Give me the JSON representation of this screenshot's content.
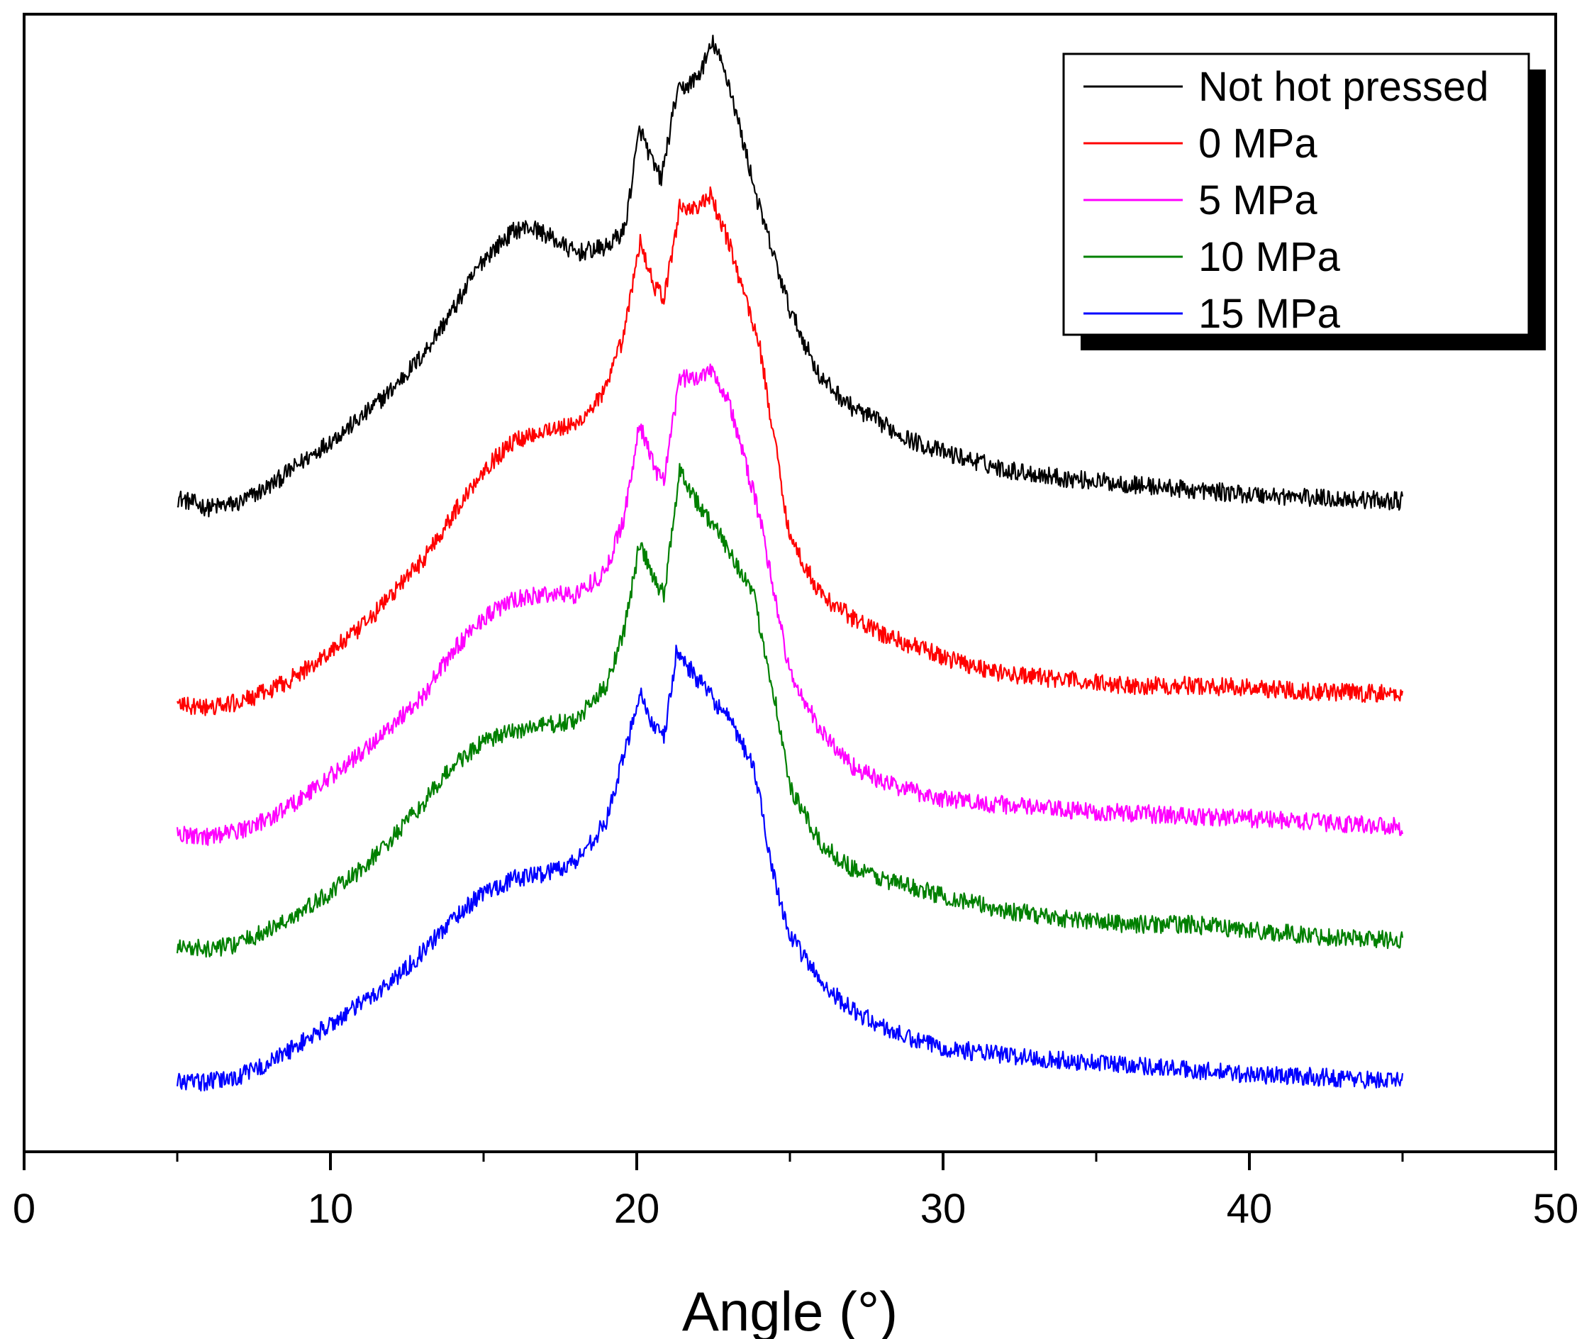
{
  "chart_data": {
    "type": "line",
    "title": "",
    "xlabel": "Angle (°)",
    "ylabel": "",
    "xlim": [
      0,
      50
    ],
    "ylim": [
      0,
      1
    ],
    "x_ticks": [
      "0",
      "10",
      "20",
      "30",
      "40",
      "50"
    ],
    "y_ticks": [],
    "grid": false,
    "legend_position": "top-right",
    "noise": 0.008,
    "series": [
      {
        "name": "Not hot pressed",
        "color": "#000000",
        "points": [
          [
            5,
            0.575
          ],
          [
            6,
            0.566
          ],
          [
            7,
            0.57
          ],
          [
            8,
            0.585
          ],
          [
            9,
            0.605
          ],
          [
            10,
            0.625
          ],
          [
            11,
            0.645
          ],
          [
            12,
            0.67
          ],
          [
            13,
            0.7
          ],
          [
            14,
            0.74
          ],
          [
            15,
            0.785
          ],
          [
            16,
            0.81
          ],
          [
            16.5,
            0.813
          ],
          [
            17,
            0.807
          ],
          [
            18,
            0.79
          ],
          [
            19,
            0.795
          ],
          [
            19.6,
            0.81
          ],
          [
            20.1,
            0.9
          ],
          [
            20.5,
            0.87
          ],
          [
            20.8,
            0.855
          ],
          [
            21.3,
            0.93
          ],
          [
            22,
            0.945
          ],
          [
            22.5,
            0.975
          ],
          [
            23,
            0.94
          ],
          [
            24,
            0.83
          ],
          [
            25,
            0.74
          ],
          [
            26,
            0.68
          ],
          [
            27,
            0.655
          ],
          [
            28,
            0.64
          ],
          [
            29,
            0.625
          ],
          [
            30,
            0.615
          ],
          [
            32,
            0.6
          ],
          [
            34,
            0.592
          ],
          [
            36,
            0.587
          ],
          [
            38,
            0.582
          ],
          [
            40,
            0.578
          ],
          [
            42,
            0.575
          ],
          [
            45,
            0.572
          ]
        ]
      },
      {
        "name": "0 MPa",
        "color": "#ff0000",
        "points": [
          [
            5,
            0.393
          ],
          [
            6,
            0.39
          ],
          [
            7,
            0.395
          ],
          [
            8,
            0.405
          ],
          [
            9,
            0.42
          ],
          [
            10,
            0.44
          ],
          [
            11,
            0.46
          ],
          [
            12,
            0.49
          ],
          [
            13,
            0.52
          ],
          [
            14,
            0.56
          ],
          [
            15,
            0.6
          ],
          [
            16,
            0.625
          ],
          [
            17,
            0.635
          ],
          [
            18,
            0.638
          ],
          [
            19,
            0.67
          ],
          [
            19.6,
            0.72
          ],
          [
            20.1,
            0.8
          ],
          [
            20.6,
            0.76
          ],
          [
            20.9,
            0.75
          ],
          [
            21.4,
            0.83
          ],
          [
            22,
            0.83
          ],
          [
            22.4,
            0.84
          ],
          [
            23,
            0.8
          ],
          [
            24,
            0.71
          ],
          [
            25,
            0.54
          ],
          [
            26,
            0.49
          ],
          [
            27,
            0.47
          ],
          [
            28,
            0.455
          ],
          [
            30,
            0.435
          ],
          [
            32,
            0.42
          ],
          [
            34,
            0.415
          ],
          [
            36,
            0.41
          ],
          [
            38,
            0.41
          ],
          [
            40,
            0.408
          ],
          [
            42,
            0.405
          ],
          [
            45,
            0.402
          ]
        ]
      },
      {
        "name": "5 MPa",
        "color": "#ff00ff",
        "points": [
          [
            5,
            0.28
          ],
          [
            6,
            0.277
          ],
          [
            7,
            0.282
          ],
          [
            8,
            0.293
          ],
          [
            9,
            0.31
          ],
          [
            10,
            0.33
          ],
          [
            11,
            0.35
          ],
          [
            12,
            0.375
          ],
          [
            13,
            0.4
          ],
          [
            14,
            0.44
          ],
          [
            15,
            0.47
          ],
          [
            16,
            0.485
          ],
          [
            17,
            0.49
          ],
          [
            18,
            0.49
          ],
          [
            19,
            0.51
          ],
          [
            19.6,
            0.56
          ],
          [
            20.1,
            0.64
          ],
          [
            20.6,
            0.6
          ],
          [
            20.9,
            0.59
          ],
          [
            21.4,
            0.68
          ],
          [
            22,
            0.68
          ],
          [
            22.4,
            0.69
          ],
          [
            23,
            0.66
          ],
          [
            24,
            0.56
          ],
          [
            25,
            0.42
          ],
          [
            26,
            0.37
          ],
          [
            27,
            0.34
          ],
          [
            28,
            0.325
          ],
          [
            30,
            0.31
          ],
          [
            32,
            0.305
          ],
          [
            34,
            0.3
          ],
          [
            36,
            0.298
          ],
          [
            38,
            0.295
          ],
          [
            40,
            0.293
          ],
          [
            42,
            0.29
          ],
          [
            45,
            0.286
          ]
        ]
      },
      {
        "name": "10 MPa",
        "color": "#008000",
        "points": [
          [
            5,
            0.18
          ],
          [
            6,
            0.178
          ],
          [
            7,
            0.183
          ],
          [
            8,
            0.195
          ],
          [
            9,
            0.21
          ],
          [
            10,
            0.228
          ],
          [
            11,
            0.248
          ],
          [
            12,
            0.275
          ],
          [
            13,
            0.305
          ],
          [
            14,
            0.34
          ],
          [
            15,
            0.36
          ],
          [
            16,
            0.37
          ],
          [
            17,
            0.375
          ],
          [
            18,
            0.378
          ],
          [
            19,
            0.41
          ],
          [
            19.6,
            0.46
          ],
          [
            20.1,
            0.535
          ],
          [
            20.6,
            0.5
          ],
          [
            20.9,
            0.49
          ],
          [
            21.4,
            0.6
          ],
          [
            22,
            0.57
          ],
          [
            23,
            0.53
          ],
          [
            23.8,
            0.49
          ],
          [
            24.5,
            0.4
          ],
          [
            25,
            0.32
          ],
          [
            26,
            0.27
          ],
          [
            27,
            0.25
          ],
          [
            28,
            0.24
          ],
          [
            30,
            0.225
          ],
          [
            32,
            0.212
          ],
          [
            34,
            0.205
          ],
          [
            36,
            0.2
          ],
          [
            38,
            0.2
          ],
          [
            40,
            0.195
          ],
          [
            42,
            0.19
          ],
          [
            45,
            0.186
          ]
        ]
      },
      {
        "name": "15 MPa",
        "color": "#0000ff",
        "points": [
          [
            5,
            0.062
          ],
          [
            6,
            0.061
          ],
          [
            7,
            0.066
          ],
          [
            8,
            0.078
          ],
          [
            9,
            0.095
          ],
          [
            10,
            0.112
          ],
          [
            11,
            0.13
          ],
          [
            12,
            0.15
          ],
          [
            13,
            0.175
          ],
          [
            14,
            0.205
          ],
          [
            15,
            0.228
          ],
          [
            16,
            0.24
          ],
          [
            17,
            0.245
          ],
          [
            18,
            0.255
          ],
          [
            19,
            0.29
          ],
          [
            19.6,
            0.35
          ],
          [
            20.1,
            0.405
          ],
          [
            20.6,
            0.37
          ],
          [
            20.9,
            0.365
          ],
          [
            21.3,
            0.44
          ],
          [
            22,
            0.415
          ],
          [
            23,
            0.38
          ],
          [
            23.8,
            0.34
          ],
          [
            24.5,
            0.24
          ],
          [
            25,
            0.19
          ],
          [
            26,
            0.15
          ],
          [
            27,
            0.125
          ],
          [
            28,
            0.11
          ],
          [
            29,
            0.098
          ],
          [
            30,
            0.092
          ],
          [
            31,
            0.088
          ],
          [
            32,
            0.085
          ],
          [
            34,
            0.08
          ],
          [
            36,
            0.077
          ],
          [
            38,
            0.072
          ],
          [
            40,
            0.068
          ],
          [
            42,
            0.066
          ],
          [
            45,
            0.062
          ]
        ]
      }
    ]
  }
}
